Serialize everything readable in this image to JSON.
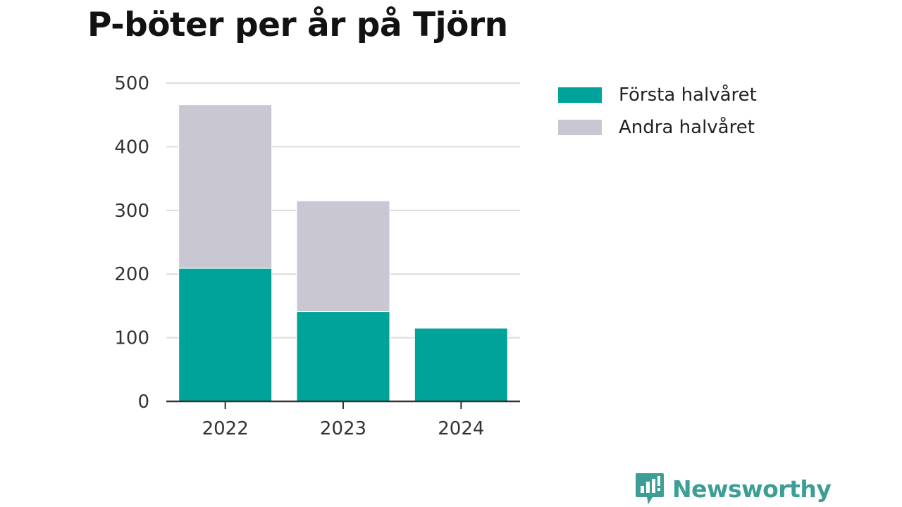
{
  "chart_data": {
    "type": "bar",
    "stacked": true,
    "title": "P-böter per år på Tjörn",
    "xlabel": "",
    "ylabel": "",
    "categories": [
      "2022",
      "2023",
      "2024"
    ],
    "series": [
      {
        "name": "Första halvåret",
        "color": "#00a39a",
        "values": [
          209,
          141,
          115
        ]
      },
      {
        "name": "Andra halvåret",
        "color": "#c8c7d2",
        "values": [
          257,
          174,
          null
        ]
      }
    ],
    "ylim": [
      0,
      500
    ],
    "yticks": [
      0,
      100,
      200,
      300,
      400,
      500
    ],
    "grid": true,
    "legend_position": "right"
  },
  "brand": {
    "name": "Newsworthy",
    "icon": "newsworthy-logo-icon",
    "color": "#3d9e96"
  }
}
